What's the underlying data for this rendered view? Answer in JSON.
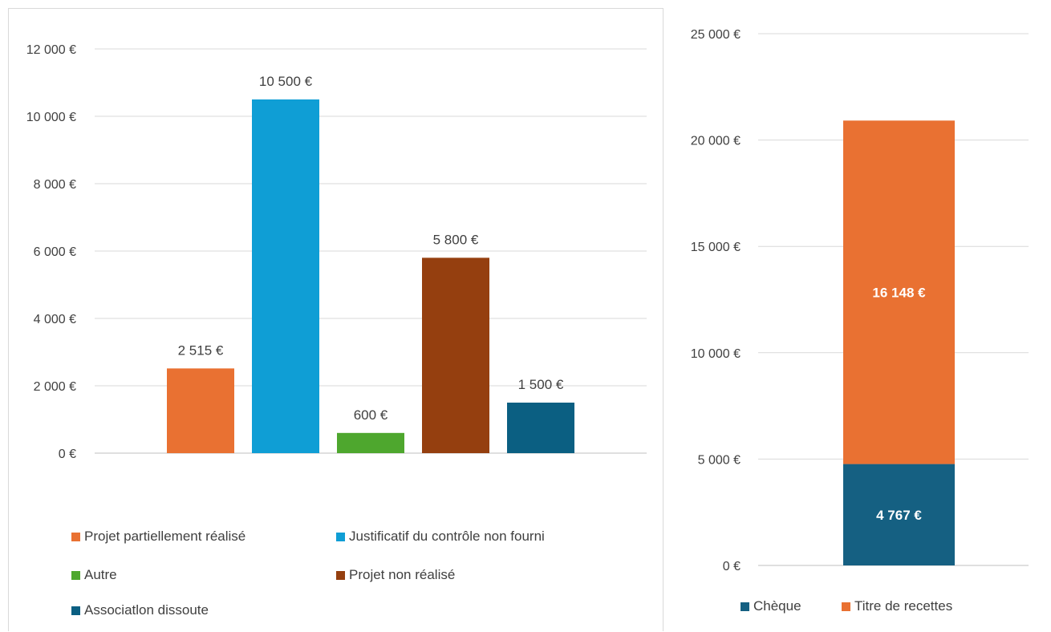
{
  "chart_data": [
    {
      "type": "bar",
      "categories": [
        "Projet partiellement réalisé",
        "Justificatif du contrôle non fourni",
        "Autre",
        "Projet non réalisé",
        "Associatlon dissoute"
      ],
      "values": [
        2515,
        10500,
        600,
        5800,
        1500
      ],
      "data_labels": [
        "2 515 €",
        "10 500 €",
        "600 €",
        "5 800 €",
        "1 500 €"
      ],
      "colors": [
        "#e97132",
        "#0f9ed5",
        "#4ea72e",
        "#953f0f",
        "#0b5f82"
      ],
      "ylim": [
        0,
        12000
      ],
      "yticks": [
        0,
        2000,
        4000,
        6000,
        8000,
        10000,
        12000
      ],
      "ytick_labels": [
        "0 €",
        "2 000 €",
        "4 000 €",
        "6 000 €",
        "8 000 €",
        "10 000 €",
        "12 000 €"
      ],
      "grid": true,
      "legend": "bottom"
    },
    {
      "type": "bar",
      "stacked": true,
      "series": [
        {
          "name": "Chèque",
          "values": [
            4767
          ],
          "data_label": "4 767 €",
          "color": "#156082"
        },
        {
          "name": "Titre de recettes",
          "values": [
            16148
          ],
          "data_label": "16 148 €",
          "color": "#e97132"
        }
      ],
      "ylim": [
        0,
        25000
      ],
      "yticks": [
        0,
        5000,
        10000,
        15000,
        20000,
        25000
      ],
      "ytick_labels": [
        "0 €",
        "5 000 €",
        "10 000 €",
        "15 000 €",
        "20 000 €",
        "25 000 €"
      ],
      "grid": true,
      "legend": "bottom"
    }
  ]
}
